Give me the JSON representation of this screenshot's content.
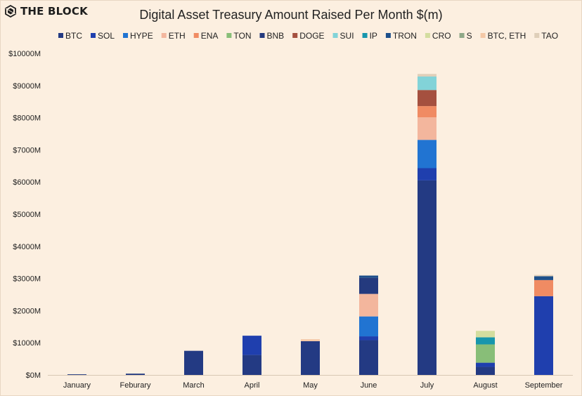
{
  "brand": {
    "name": "THE BLOCK",
    "icon": "the-block-logo-icon"
  },
  "colors": {
    "BTC": "#233a83",
    "SOL": "#1f3fae",
    "HYPE": "#2174d2",
    "ETH": "#f3b69d",
    "ENA": "#f08b63",
    "TON": "#88be78",
    "BNB": "#243a7e",
    "DOGE": "#a5503f",
    "SUI": "#82d3d8",
    "IP": "#1796ad",
    "TRON": "#1d4f8a",
    "CRO": "#d3dd9f",
    "S": "#8fa888",
    "BTC, ETH": "#f4c8a6",
    "TAO": "#dfcfb9"
  },
  "chart_data": {
    "type": "bar",
    "stacked": true,
    "title": "Digital Asset Treasury Amount Raised Per Month $(m)",
    "legend_position": "top",
    "grid": false,
    "ylim": [
      0,
      10000
    ],
    "y_ticks": [
      "$0M",
      "$1000M",
      "$2000M",
      "$3000M",
      "$4000M",
      "$5000M",
      "$6000M",
      "$7000M",
      "$8000M",
      "$9000M",
      "$10000M"
    ],
    "categories": [
      "January",
      "Feburary",
      "March",
      "April",
      "May",
      "June",
      "July",
      "August",
      "September"
    ],
    "series": [
      {
        "name": "BTC",
        "values": [
          20,
          40,
          750,
          620,
          1050,
          1080,
          6050,
          250,
          0
        ]
      },
      {
        "name": "SOL",
        "values": [
          0,
          0,
          0,
          600,
          0,
          120,
          380,
          130,
          2450
        ]
      },
      {
        "name": "HYPE",
        "values": [
          0,
          0,
          0,
          0,
          0,
          620,
          880,
          0,
          0
        ]
      },
      {
        "name": "ETH",
        "values": [
          0,
          0,
          0,
          0,
          0,
          700,
          700,
          0,
          0
        ]
      },
      {
        "name": "ENA",
        "values": [
          0,
          0,
          0,
          0,
          0,
          0,
          350,
          0,
          500
        ]
      },
      {
        "name": "TON",
        "values": [
          0,
          0,
          0,
          0,
          0,
          0,
          0,
          570,
          0
        ]
      },
      {
        "name": "BNB",
        "values": [
          0,
          0,
          0,
          0,
          0,
          500,
          0,
          0,
          0
        ]
      },
      {
        "name": "DOGE",
        "values": [
          0,
          0,
          0,
          0,
          0,
          0,
          500,
          0,
          0
        ]
      },
      {
        "name": "SUI",
        "values": [
          0,
          0,
          0,
          0,
          0,
          0,
          420,
          0,
          0
        ]
      },
      {
        "name": "IP",
        "values": [
          0,
          0,
          0,
          0,
          0,
          0,
          0,
          220,
          0
        ]
      },
      {
        "name": "TRON",
        "values": [
          0,
          0,
          0,
          0,
          0,
          70,
          0,
          0,
          120
        ]
      },
      {
        "name": "CRO",
        "values": [
          0,
          0,
          0,
          0,
          0,
          0,
          0,
          200,
          0
        ]
      },
      {
        "name": "S",
        "values": [
          0,
          0,
          0,
          0,
          0,
          0,
          0,
          0,
          0
        ]
      },
      {
        "name": "BTC, ETH",
        "values": [
          0,
          0,
          0,
          0,
          60,
          0,
          0,
          0,
          0
        ]
      },
      {
        "name": "TAO",
        "values": [
          0,
          0,
          0,
          0,
          0,
          0,
          80,
          0,
          40
        ]
      }
    ]
  }
}
